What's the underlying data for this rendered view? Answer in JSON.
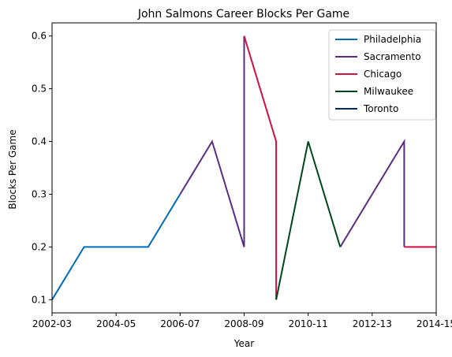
{
  "chart_data": {
    "type": "line",
    "title": "John Salmons Career Blocks Per Game",
    "xlabel": "Year",
    "ylabel": "Blocks Per Game",
    "x_tick_labels": [
      "2002-03",
      "2004-05",
      "2006-07",
      "2008-09",
      "2010-11",
      "2012-13",
      "2014-15"
    ],
    "y_ticks": [
      0.1,
      0.2,
      0.3,
      0.4,
      0.5,
      0.6
    ],
    "xlim": [
      0,
      12
    ],
    "ylim": [
      0.075,
      0.625
    ],
    "grid": false,
    "legend_placement": "top-right",
    "series": [
      {
        "name": "Philadelphia",
        "color": "#006bb6",
        "x": [
          "2002-03",
          "2003-04",
          "2004-05",
          "2005-06",
          "2006-07"
        ],
        "values": [
          0.1,
          0.2,
          0.2,
          0.2,
          0.3
        ]
      },
      {
        "name": "Sacramento",
        "color": "#5a2d81",
        "x": [
          "2006-07",
          "2007-08",
          "2008-09",
          "2008-09",
          "2011-12",
          "2012-13",
          "2013-14"
        ],
        "values": [
          0.3,
          0.4,
          0.2,
          0.6,
          0.2,
          0.3,
          0.4
        ]
      },
      {
        "name": "Chicago",
        "color": "#ce1141",
        "x": [
          "2008-09",
          "2009-10",
          "2009-10",
          "2013-14",
          "2014-15"
        ],
        "values": [
          0.6,
          0.4,
          0.1,
          0.2,
          0.2
        ]
      },
      {
        "name": "Milwaukee",
        "color": "#00471b",
        "x": [
          "2009-10",
          "2010-11",
          "2011-12"
        ],
        "values": [
          0.1,
          0.4,
          0.2
        ]
      },
      {
        "name": "Toronto",
        "color": "#002b5c",
        "x": [],
        "values": []
      }
    ],
    "segments_in_order": [
      {
        "series": "Philadelphia",
        "x": [
          "2002-03",
          "2003-04",
          "2004-05",
          "2005-06",
          "2006-07"
        ],
        "values": [
          0.1,
          0.2,
          0.2,
          0.2,
          0.3
        ]
      },
      {
        "series": "Sacramento",
        "x": [
          "2006-07",
          "2007-08",
          "2008-09",
          "2008-09"
        ],
        "values": [
          0.3,
          0.4,
          0.2,
          0.6
        ]
      },
      {
        "series": "Chicago",
        "x": [
          "2008-09",
          "2009-10",
          "2009-10"
        ],
        "values": [
          0.6,
          0.4,
          0.1
        ]
      },
      {
        "series": "Milwaukee",
        "x": [
          "2009-10",
          "2010-11",
          "2011-12"
        ],
        "values": [
          0.1,
          0.4,
          0.2
        ]
      },
      {
        "series": "Sacramento",
        "x": [
          "2011-12",
          "2012-13",
          "2013-14",
          "2013-14"
        ],
        "values": [
          0.2,
          0.3,
          0.4,
          0.2
        ]
      },
      {
        "series": "Chicago",
        "x": [
          "2013-14",
          "2014-15"
        ],
        "values": [
          0.2,
          0.2
        ]
      }
    ]
  }
}
